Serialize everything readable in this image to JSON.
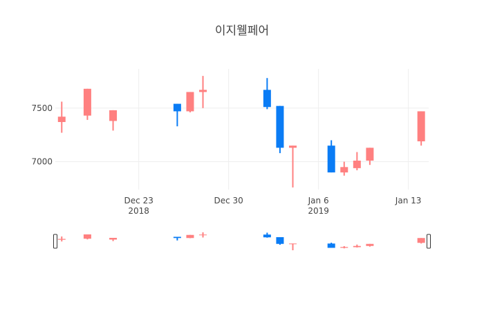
{
  "chart_data": {
    "type": "candlestick",
    "title": "이지웰페어",
    "x": [
      "2018-12-17",
      "2018-12-19",
      "2018-12-21",
      "2018-12-26",
      "2018-12-27",
      "2018-12-28",
      "2019-01-02",
      "2019-01-03",
      "2019-01-04",
      "2019-01-07",
      "2019-01-08",
      "2019-01-09",
      "2019-01-10",
      "2019-01-14"
    ],
    "open": [
      7370,
      7430,
      7380,
      7540,
      7470,
      7650,
      7670,
      7520,
      7130,
      7150,
      6900,
      6940,
      7010,
      7190
    ],
    "high": [
      7560,
      7680,
      7480,
      7540,
      7650,
      7800,
      7780,
      7520,
      7150,
      7200,
      7000,
      7090,
      7130,
      7470
    ],
    "low": [
      7270,
      7390,
      7290,
      7330,
      7460,
      7500,
      7490,
      7080,
      6760,
      6900,
      6870,
      6920,
      6970,
      7150
    ],
    "close": [
      7420,
      7680,
      7480,
      7470,
      7650,
      7670,
      7510,
      7130,
      7150,
      6900,
      6950,
      7010,
      7130,
      7470
    ],
    "increasing_color": "#ff8080",
    "decreasing_color": "#0a7cf5",
    "xlim": [
      "2018-12-16T12:00",
      "2019-01-14T14:00"
    ],
    "xticks": [
      {
        "value": "2018-12-23",
        "label": "Dec 23\n2018"
      },
      {
        "value": "2018-12-30",
        "label": "Dec 30"
      },
      {
        "value": "2019-01-06",
        "label": "Jan 6\n2019"
      },
      {
        "value": "2019-01-13",
        "label": "Jan 13"
      }
    ],
    "ylim": [
      6740,
      7865
    ],
    "yticks": [
      7000,
      7500
    ],
    "grid": true,
    "rangeslider": true
  }
}
